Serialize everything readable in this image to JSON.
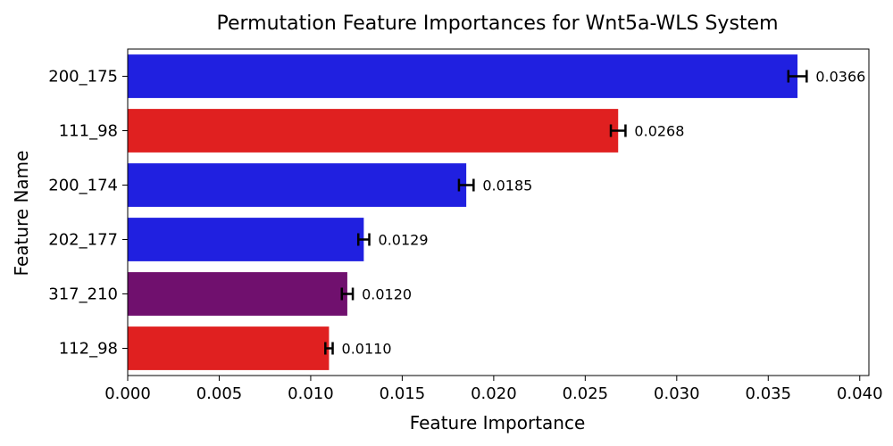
{
  "chart_data": {
    "type": "bar",
    "orientation": "horizontal",
    "title": "Permutation Feature Importances for Wnt5a-WLS System",
    "xlabel": "Feature Importance",
    "ylabel": "Feature Name",
    "xlim": [
      0.0,
      0.0405
    ],
    "grid": false,
    "x_ticks": [
      "0.000",
      "0.005",
      "0.010",
      "0.015",
      "0.020",
      "0.025",
      "0.030",
      "0.035",
      "0.040"
    ],
    "x_tick_values": [
      0,
      0.005,
      0.01,
      0.015,
      0.02,
      0.025,
      0.03,
      0.035,
      0.04
    ],
    "categories": [
      "200_175",
      "111_98",
      "200_174",
      "202_177",
      "317_210",
      "112_98"
    ],
    "values": [
      0.0366,
      0.0268,
      0.0185,
      0.0129,
      0.012,
      0.011
    ],
    "errors": [
      0.0005,
      0.0004,
      0.0004,
      0.0003,
      0.0003,
      0.0002
    ],
    "value_labels": [
      "0.0366",
      "0.0268",
      "0.0185",
      "0.0129",
      "0.0120",
      "0.0110"
    ],
    "colors": [
      "#2020e0",
      "#e02020",
      "#2020e0",
      "#2020e0",
      "#70106e",
      "#e02020"
    ]
  }
}
